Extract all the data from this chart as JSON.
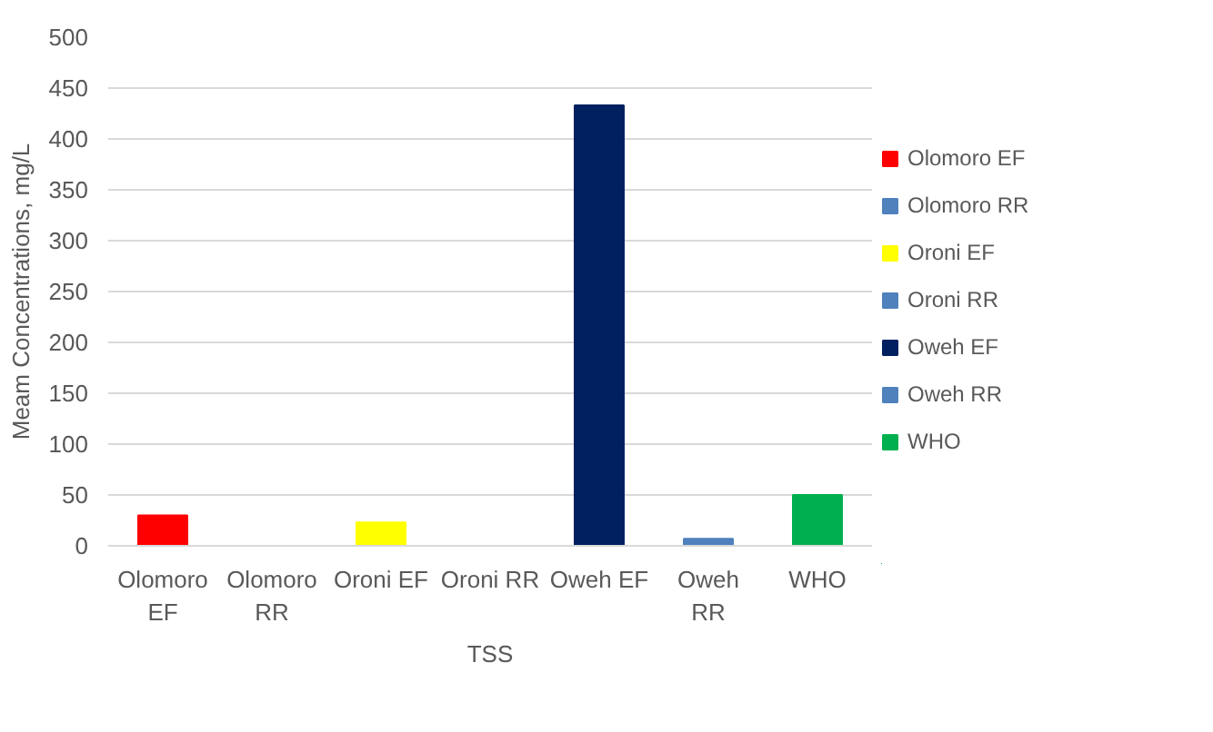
{
  "chart_data": {
    "type": "bar",
    "xlabel": "TSS",
    "ylabel": "Meam Concentrations, mg/L",
    "categories": [
      "Olomoro EF",
      "Olomoro RR",
      "Oroni EF",
      "Oroni RR",
      "Oweh EF",
      "Oweh RR",
      "WHO"
    ],
    "series": [
      {
        "name": "Olomoro EF",
        "color": "#ff0000",
        "values": [
          30,
          null,
          null,
          null,
          null,
          null,
          null
        ]
      },
      {
        "name": "Olomoro RR",
        "color": "#4f81bd",
        "values": [
          null,
          0,
          null,
          null,
          null,
          null,
          null
        ]
      },
      {
        "name": "Oroni EF",
        "color": "#ffff00",
        "values": [
          null,
          null,
          23,
          null,
          null,
          null,
          null
        ]
      },
      {
        "name": "Oroni RR",
        "color": "#4f81bd",
        "values": [
          null,
          null,
          null,
          0,
          null,
          null,
          null
        ]
      },
      {
        "name": "Oweh EF",
        "color": "#002060",
        "values": [
          null,
          null,
          null,
          null,
          433,
          null,
          null
        ]
      },
      {
        "name": "Oweh RR",
        "color": "#4f81bd",
        "values": [
          null,
          null,
          null,
          null,
          null,
          7,
          null
        ]
      },
      {
        "name": "WHO",
        "color": "#00b050",
        "values": [
          null,
          null,
          null,
          null,
          null,
          null,
          50
        ]
      }
    ],
    "ylim": [
      0,
      500
    ],
    "yticks": [
      0,
      50,
      100,
      150,
      200,
      250,
      300,
      350,
      400,
      450,
      500
    ],
    "grid": "y",
    "legend": "right"
  }
}
